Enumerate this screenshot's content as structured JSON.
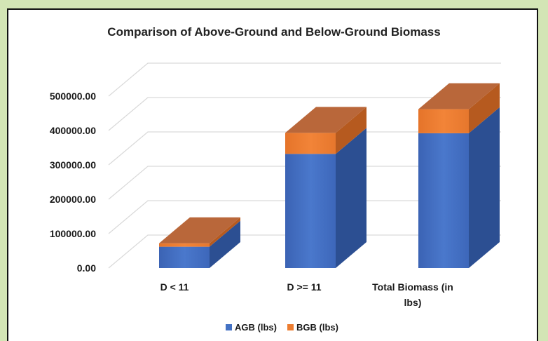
{
  "chart_data": {
    "type": "bar",
    "subtype": "stacked-3d",
    "title": "Comparison of Above-Ground and Below-Ground Biomass",
    "categories": [
      "D < 11",
      "D >= 11",
      "Total Biomass (in lbs)"
    ],
    "category_lines": [
      [
        "D < 11"
      ],
      [
        "D >= 11"
      ],
      [
        "Total Biomass (in",
        "lbs)"
      ]
    ],
    "series": [
      {
        "name": "AGB (lbs)",
        "values": [
          62000,
          332000,
          392000
        ],
        "color": "#4472c4"
      },
      {
        "name": "BGB (lbs)",
        "values": [
          10000,
          61000,
          70000
        ],
        "color": "#ed7d31"
      }
    ],
    "yticks": [
      "0.00",
      "100000.00",
      "200000.00",
      "300000.00",
      "400000.00",
      "500000.00"
    ],
    "ylim": [
      0,
      500000
    ],
    "grid": true,
    "legend_position": "bottom",
    "colors": {
      "agb": "#4472c4",
      "bgb": "#ed7d31",
      "panel_border": "#111111",
      "background": "#d3e5b5"
    }
  }
}
